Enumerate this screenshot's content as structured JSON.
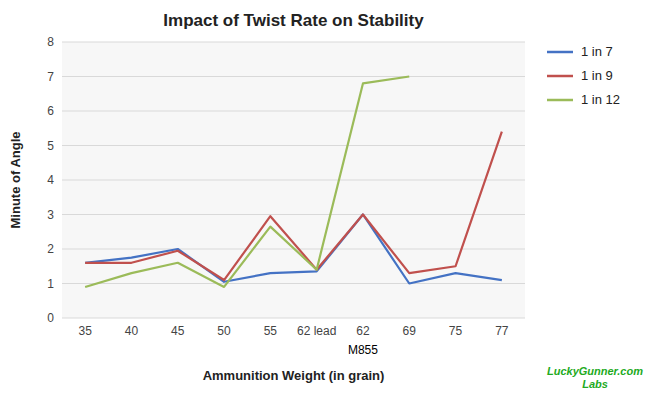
{
  "chart_data": {
    "type": "line",
    "title": "Impact of Twist Rate on Stability",
    "x_label": "Ammunition Weight (in grain)",
    "y_label": "Minute of Angle",
    "categories": [
      "35",
      "40",
      "45",
      "50",
      "55",
      "62 lead",
      "62",
      "69",
      "75",
      "77"
    ],
    "series": [
      {
        "name": "1 in 7",
        "color": "#4472C4",
        "values": [
          1.6,
          1.75,
          2.0,
          1.05,
          1.3,
          1.35,
          3.0,
          1.0,
          1.3,
          1.1
        ]
      },
      {
        "name": "1 in 9",
        "color": "#C0504D",
        "values": [
          1.6,
          1.6,
          1.95,
          1.1,
          2.95,
          1.4,
          3.0,
          1.3,
          1.5,
          5.4
        ]
      },
      {
        "name": "1 in 12",
        "color": "#9BBB59",
        "values": [
          0.9,
          1.3,
          1.6,
          0.9,
          2.65,
          1.4,
          6.8,
          7.0,
          null,
          null
        ]
      }
    ],
    "ylim": [
      0,
      8
    ],
    "yticks": [
      0,
      1,
      2,
      3,
      4,
      5,
      6,
      7,
      8
    ],
    "grid": true,
    "legend": "right",
    "annotations": [
      {
        "text": "M855",
        "category": "62"
      },
      {
        "text": "LuckyGunner.com\nLabs",
        "color": "#22AA22"
      }
    ]
  }
}
